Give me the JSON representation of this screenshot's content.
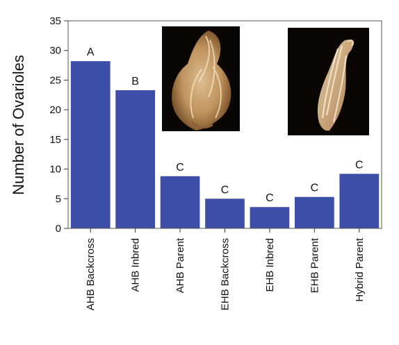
{
  "chart_data": {
    "type": "bar",
    "title": "",
    "xlabel": "",
    "ylabel": "Number of Ovarioles",
    "ylim": [
      0,
      35
    ],
    "yticks": [
      0,
      5,
      10,
      15,
      20,
      25,
      30,
      35
    ],
    "grid": false,
    "legend": "none",
    "bar_color": "#3d4ea8",
    "categories": [
      "AHB Backcross",
      "AHB Inbred",
      "AHB Parent",
      "EHB Backcross",
      "EHB Inbred",
      "EHB Parent",
      "Hybrid Parent"
    ],
    "values": [
      28.2,
      23.3,
      8.8,
      5.0,
      3.6,
      5.3,
      9.2
    ],
    "significance_labels": [
      "A",
      "B",
      "C",
      "C",
      "C",
      "C",
      "C"
    ],
    "insets": [
      {
        "name": "inset-ovary-photo-left",
        "after_category": "AHB Inbred",
        "icon": "ovary-photo-icon"
      },
      {
        "name": "inset-ovary-photo-right",
        "after_category": "EHB Inbred",
        "icon": "ovary-photo-icon"
      }
    ]
  }
}
